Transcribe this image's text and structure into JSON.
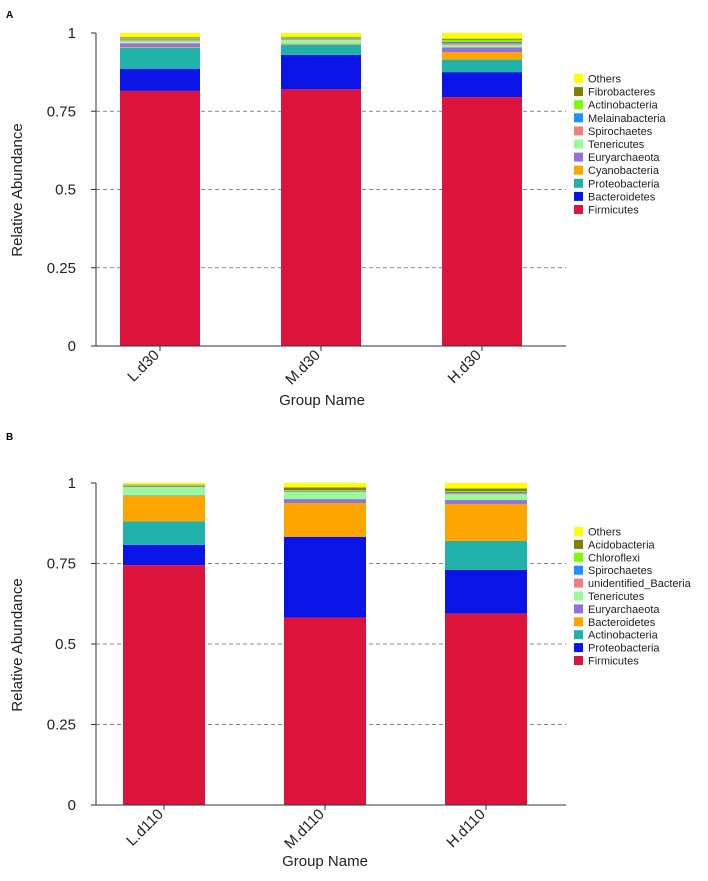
{
  "chart_data": [
    {
      "panel": "A",
      "type": "bar",
      "stacked": true,
      "xlabel": "Group Name",
      "ylabel": "Relative Abundance",
      "ylim": [
        0,
        1
      ],
      "yticks": [
        0,
        0.25,
        0.5,
        0.75,
        1
      ],
      "ytick_labels": [
        "0",
        "0.25",
        "0.5",
        "0.75",
        "1"
      ],
      "grid": "dashed horizontal at 0.25, 0.5, 0.75",
      "legend_position": "right",
      "categories": [
        "L.d30",
        "M.d30",
        "H.d30"
      ],
      "series": [
        {
          "name": "Firmicutes",
          "color": "#dc143c",
          "values": [
            0.815,
            0.82,
            0.795
          ]
        },
        {
          "name": "Bacteroidetes",
          "color": "#0a14e6",
          "values": [
            0.07,
            0.11,
            0.08
          ]
        },
        {
          "name": "Proteobacteria",
          "color": "#20b2aa",
          "values": [
            0.068,
            0.032,
            0.04
          ]
        },
        {
          "name": "Cyanobacteria",
          "color": "#ffa500",
          "values": [
            0.002,
            0.002,
            0.024
          ]
        },
        {
          "name": "Euryarchaeota",
          "color": "#9370db",
          "values": [
            0.012,
            0.002,
            0.015
          ]
        },
        {
          "name": "Tenericutes",
          "color": "#98fb98",
          "values": [
            0.008,
            0.012,
            0.008
          ]
        },
        {
          "name": "Spirochaetes",
          "color": "#f08080",
          "values": [
            0.005,
            0.003,
            0.006
          ]
        },
        {
          "name": "Melainabacteria",
          "color": "#1e90ff",
          "values": [
            0.002,
            0.002,
            0.004
          ]
        },
        {
          "name": "Actinobacteria",
          "color": "#7cfc00",
          "values": [
            0.003,
            0.003,
            0.006
          ]
        },
        {
          "name": "Fibrobacteres",
          "color": "#808000",
          "values": [
            0.002,
            0.002,
            0.004
          ]
        },
        {
          "name": "Others",
          "color": "#ffff00",
          "values": [
            0.013,
            0.012,
            0.018
          ]
        }
      ]
    },
    {
      "panel": "B",
      "type": "bar",
      "stacked": true,
      "xlabel": "Group Name",
      "ylabel": "Relative Abundance",
      "ylim": [
        0,
        1
      ],
      "yticks": [
        0,
        0.25,
        0.5,
        0.75,
        1
      ],
      "ytick_labels": [
        "0",
        "0.25",
        "0.5",
        "0.75",
        "1"
      ],
      "grid": "dashed horizontal at 0.25, 0.5, 0.75",
      "legend_position": "right",
      "categories": [
        "L.d110",
        "M.d110",
        "H.d110"
      ],
      "series": [
        {
          "name": "Firmicutes",
          "color": "#dc143c",
          "values": [
            0.745,
            0.582,
            0.595
          ]
        },
        {
          "name": "Proteobacteria",
          "color": "#0a14e6",
          "values": [
            0.063,
            0.251,
            0.135
          ]
        },
        {
          "name": "Actinobacteria",
          "color": "#20b2aa",
          "values": [
            0.073,
            0.0,
            0.09
          ]
        },
        {
          "name": "Bacteroidetes",
          "color": "#ffa500",
          "values": [
            0.079,
            0.105,
            0.115
          ]
        },
        {
          "name": "Euryarchaeota",
          "color": "#9370db",
          "values": [
            0.002,
            0.012,
            0.012
          ]
        },
        {
          "name": "Tenericutes",
          "color": "#98fb98",
          "values": [
            0.025,
            0.022,
            0.018
          ]
        },
        {
          "name": "unidentified_Bacteria",
          "color": "#f08080",
          "values": [
            0.002,
            0.002,
            0.004
          ]
        },
        {
          "name": "Spirochaetes",
          "color": "#1e90ff",
          "values": [
            0.002,
            0.002,
            0.003
          ]
        },
        {
          "name": "Chloroflexi",
          "color": "#7cfc00",
          "values": [
            0.002,
            0.002,
            0.003
          ]
        },
        {
          "name": "Acidobacteria",
          "color": "#808000",
          "values": [
            0.002,
            0.008,
            0.008
          ]
        },
        {
          "name": "Others",
          "color": "#ffff00",
          "values": [
            0.005,
            0.014,
            0.017
          ]
        }
      ]
    }
  ]
}
